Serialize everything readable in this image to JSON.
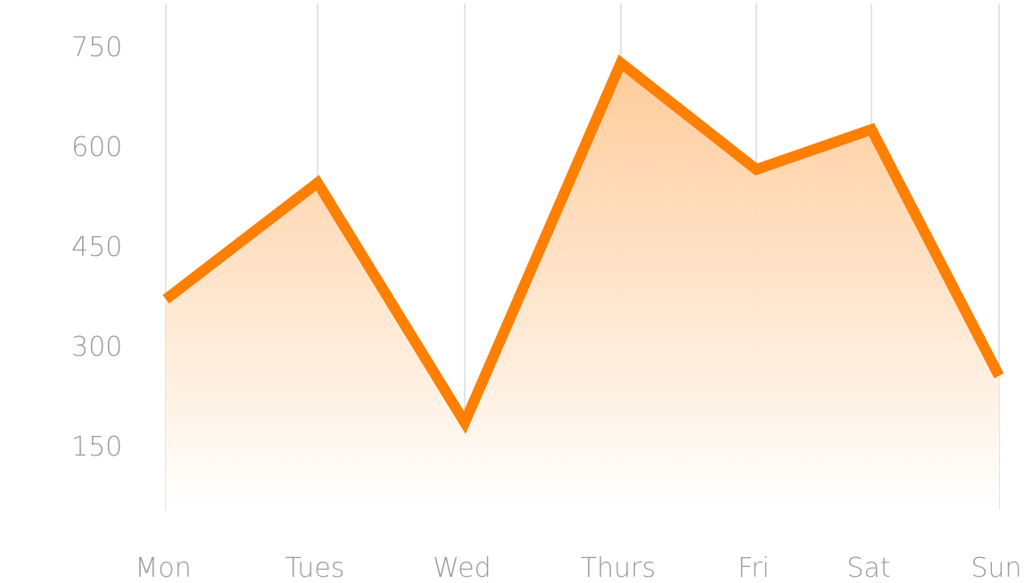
{
  "chart_data": {
    "type": "area",
    "title": "",
    "xlabel": "",
    "ylabel": "",
    "categories": [
      "Mon",
      "Tues",
      "Wed",
      "Thurs",
      "Fri",
      "Sat",
      "Sun"
    ],
    "series": [
      {
        "values": [
          370,
          545,
          185,
          725,
          565,
          625,
          255
        ]
      }
    ],
    "y_ticks": [
      "750",
      "600",
      "450",
      "300",
      "150"
    ],
    "ylim": [
      70,
      820
    ],
    "grid": "vertical lines at each category",
    "legend": "none",
    "colors": {
      "line": "#ff7f00",
      "fill_top": "#ffc996",
      "fill_bottom": "#ffffff",
      "grid": "#c8c8c8",
      "tick_text": "#9a9a9a"
    }
  }
}
